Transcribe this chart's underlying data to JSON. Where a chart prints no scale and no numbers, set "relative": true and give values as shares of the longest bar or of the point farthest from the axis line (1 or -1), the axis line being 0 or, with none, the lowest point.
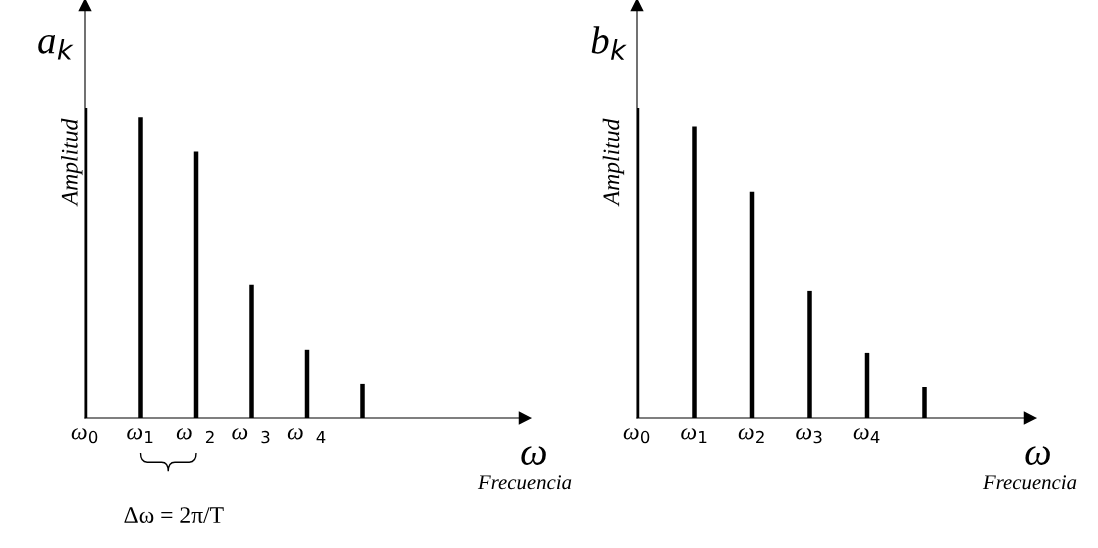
{
  "chart_data": [
    {
      "type": "bar",
      "title": "a$_{k}$",
      "ylabel": "Amplitud",
      "xlabel": "ω",
      "relative": true,
      "color": "#000000",
      "categories": [
        "ω$_{0}$",
        "ω$_{1}$",
        "ω  $_{2}$",
        "ω  $_{3}$",
        "ω  $_{4}$",
        null
      ],
      "values": [
        1,
        0.97,
        0.86,
        0.43,
        0.22,
        0.11
      ],
      "annotations": [
        "Frecuencia",
        "Δω = 2π/T"
      ]
    },
    {
      "type": "bar",
      "title": "b$_{k}$",
      "ylabel": "Amplitud",
      "xlabel": "ω",
      "relative": true,
      "color": "#000000",
      "categories": [
        "ω$_{0}$",
        "ω$_{1}$",
        "ω$_{2}$",
        "ω$_{3}$",
        "ω$_{4}$",
        null
      ],
      "values": [
        1,
        0.94,
        0.73,
        0.41,
        0.21,
        0.1
      ],
      "annotations": [
        "Frecuencia"
      ]
    }
  ]
}
